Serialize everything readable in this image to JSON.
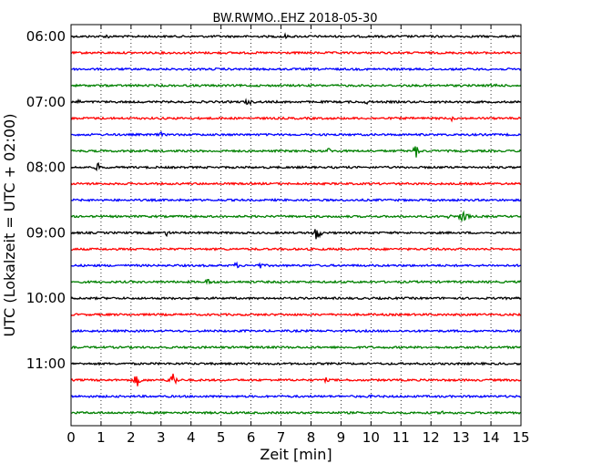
{
  "chart_data": {
    "type": "line",
    "title": "BW.RWMO..EHZ 2018-05-30",
    "xlabel": "Zeit  [min]",
    "ylabel": "UTC (Lokalzeit = UTC + 02:00)",
    "xlim": [
      0,
      15
    ],
    "x_ticks": [
      "0",
      "1",
      "2",
      "3",
      "4",
      "5",
      "6",
      "7",
      "8",
      "9",
      "10",
      "11",
      "12",
      "13",
      "14",
      "15"
    ],
    "grid": "vertical dotted",
    "trace_colors": [
      "#000000",
      "#ff0000",
      "#0000ff",
      "#008000"
    ],
    "hour_labels": [
      {
        "label": "06:00",
        "row": 0
      },
      {
        "label": "07:00",
        "row": 4
      },
      {
        "label": "08:00",
        "row": 8
      },
      {
        "label": "09:00",
        "row": 12
      },
      {
        "label": "10:00",
        "row": 16
      },
      {
        "label": "11:00",
        "row": 20
      }
    ],
    "rows": [
      {
        "start": "06:00",
        "color": "#000000",
        "events": [
          {
            "t": 1.2,
            "amp": 3
          },
          {
            "t": 7.1,
            "amp": 4
          }
        ]
      },
      {
        "start": "06:15",
        "color": "#ff0000",
        "events": []
      },
      {
        "start": "06:30",
        "color": "#0000ff",
        "events": [
          {
            "t": 4.8,
            "amp": 2
          }
        ]
      },
      {
        "start": "06:45",
        "color": "#008000",
        "events": [
          {
            "t": 14.1,
            "amp": 4
          }
        ]
      },
      {
        "start": "07:00",
        "color": "#000000",
        "events": [
          {
            "t": 0.2,
            "amp": 4
          },
          {
            "t": 5.9,
            "amp": 5
          },
          {
            "t": 9.9,
            "amp": 4
          }
        ]
      },
      {
        "start": "07:15",
        "color": "#ff0000",
        "events": [
          {
            "t": 12.7,
            "amp": 3
          }
        ]
      },
      {
        "start": "07:30",
        "color": "#0000ff",
        "events": [
          {
            "t": 3.0,
            "amp": 3
          }
        ]
      },
      {
        "start": "07:45",
        "color": "#008000",
        "events": [
          {
            "t": 8.6,
            "amp": 4
          },
          {
            "t": 11.5,
            "amp": 8
          }
        ]
      },
      {
        "start": "08:00",
        "color": "#000000",
        "events": [
          {
            "t": 0.9,
            "amp": 5
          }
        ]
      },
      {
        "start": "08:15",
        "color": "#ff0000",
        "events": []
      },
      {
        "start": "08:30",
        "color": "#0000ff",
        "events": []
      },
      {
        "start": "08:45",
        "color": "#008000",
        "events": [
          {
            "t": 12.6,
            "amp": 3
          },
          {
            "t": 13.1,
            "amp": 10
          }
        ]
      },
      {
        "start": "09:00",
        "color": "#000000",
        "events": [
          {
            "t": 3.2,
            "amp": 4
          },
          {
            "t": 8.2,
            "amp": 10
          }
        ]
      },
      {
        "start": "09:15",
        "color": "#ff0000",
        "events": []
      },
      {
        "start": "09:30",
        "color": "#0000ff",
        "events": [
          {
            "t": 5.5,
            "amp": 4
          },
          {
            "t": 6.3,
            "amp": 4
          }
        ]
      },
      {
        "start": "09:45",
        "color": "#008000",
        "events": [
          {
            "t": 4.6,
            "amp": 5
          }
        ]
      },
      {
        "start": "10:00",
        "color": "#000000",
        "events": []
      },
      {
        "start": "10:15",
        "color": "#ff0000",
        "events": []
      },
      {
        "start": "10:30",
        "color": "#0000ff",
        "events": []
      },
      {
        "start": "10:45",
        "color": "#008000",
        "events": []
      },
      {
        "start": "11:00",
        "color": "#000000",
        "events": []
      },
      {
        "start": "11:15",
        "color": "#ff0000",
        "events": [
          {
            "t": 2.2,
            "amp": 8
          },
          {
            "t": 3.4,
            "amp": 10
          },
          {
            "t": 8.5,
            "amp": 3
          }
        ]
      },
      {
        "start": "11:30",
        "color": "#0000ff",
        "events": [
          {
            "t": 10.0,
            "amp": 2
          }
        ]
      },
      {
        "start": "11:45",
        "color": "#008000",
        "events": [
          {
            "t": 12.4,
            "amp": 3
          }
        ]
      }
    ]
  }
}
